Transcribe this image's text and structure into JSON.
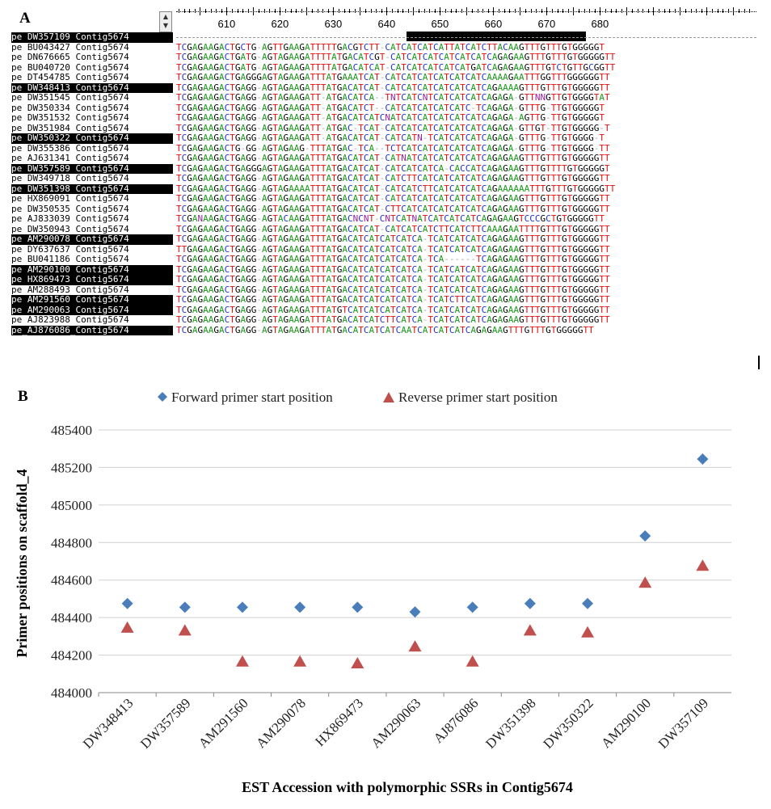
{
  "panel_a": {
    "letter": "A",
    "ruler_labels": [
      "610",
      "620",
      "630",
      "640",
      "650",
      "660",
      "670",
      "680"
    ],
    "rows": [
      {
        "name": "pe DW357109 Contig5674",
        "selected": true,
        "seq": ""
      },
      {
        "name": "pe BU043427 Contig5674",
        "selected": false,
        "seq": "TCGAGAAGACTGCTG-AGTTGAAGATTTTTGACGTCTT-CATCATCATCATTATCATCTTACAAGTTTGTTTGTGGGGGT"
      },
      {
        "name": "pe DN676665 Contig5674",
        "selected": false,
        "seq": "TCGAGAAGACTGATG-AGTAGAAGATTTTATGACATCGT-CATCATCATCATCATCATCAGAGAAGTTTGTTTGTGGGGGTT"
      },
      {
        "name": "pe BU040720 Contig5674",
        "selected": false,
        "seq": "TCGAGAAGACTGATG-AGTAGAAGATTTTATGACATCAT-CATCATCATCATCATGATCAGAGAAGTTTGTCTGTTGCGGTT"
      },
      {
        "name": "pe DT454785 Contig5674",
        "selected": false,
        "seq": "TCGAGAAGACTGAGGGAGTAGAAGATTTATGAAATCAT-CATCATCATCATCATCATCAAAAGAATTTGGTTTGGGGGGTT"
      },
      {
        "name": "pe DW348413 Contig5674",
        "selected": true,
        "seq": "TCGAGAAGACTGAGG-AGTAGAAGATTTATGACATCAT-CATCATCATCATCATCATCAGAAAAGTTTGTTTGTGGGGGTT"
      },
      {
        "name": "pe DW351545 Contig5674",
        "selected": false,
        "seq": "TCGAGAAGACTGAGG-AGTAGAAGATT-ATGACATCA--TNTCATCNTCATCATCATCAGAGA-GTTNNGTTGTGGGGTAT"
      },
      {
        "name": "pe DW350334 Contig5674",
        "selected": false,
        "seq": "TCGAGAAGACTGAGG-AGTAGAAGATT-ATGACATCT--CATCATCATCATCATC-TCAGAGA-GTTTG-TTGTGGGGGT"
      },
      {
        "name": "pe DW351532 Contig5674",
        "selected": false,
        "seq": "TCGAGAAGACTGAGG-AGTAGAAGATT-ATGACATCATCNATCATCATCATCATCATCAGAGA-AGTTG-TTGTGGGGGT"
      },
      {
        "name": "pe DW351984 Contig5674",
        "selected": false,
        "seq": "TCGAGAAGACTGAGG-AGTAGAAGATT-ATGAC-TCAT-CATCATCATCATCATCATCAGAGA-GTTGT-TTGTGGGGG-T"
      },
      {
        "name": "pe DW350322 Contig5674",
        "selected": true,
        "seq": "TCGAGAAGACTGAGG-AGTAGAAGATT-ATGACATCAT-CATCATN-TCATCATCATCAGAGA-GTTTG-TTGTGGGG-T"
      },
      {
        "name": "pe DW355386 Contig5674",
        "selected": false,
        "seq": "TCGAGAAGACTG-GG-AGTAGAAG-TTTATGAC-TCA--TCTCATCATCATCATCATCAGAGA-GTTTG-TTGTGGGG-TT"
      },
      {
        "name": "pe AJ631341 Contig5674",
        "selected": false,
        "seq": "TCGAGAAGACTGAGG-AGTAGAAGATTTATGACATCAT-CATNATCATCATCATCATCAGAGAAGTTTGTTTGTGGGGGTT"
      },
      {
        "name": "pe DW357589 Contig5674",
        "selected": true,
        "seq": "TCGAGAAGACTGAGGGAGTAGAAGATTTATGACATCAT-CATCATCATCA-CACCATCAGAGAAGTTTGTTTTGTGGGGGT"
      },
      {
        "name": "pe DW349718 Contig5674",
        "selected": false,
        "seq": "TCGAGAAGACTGAGG-AGTAGAAGATTTATGACATCAT-CATCTTCATCATCATCATCAGAGAAGTTTGTTTGTGGGGGTT"
      },
      {
        "name": "pe DW351398 Contig5674",
        "selected": true,
        "seq": "TCGAGAAGACTGAGG-AGTAGAAAATTTATGACATCAT-CATCATCTTCATCATCATCAGAAAAAATTTGTTTGTGGGGGTT"
      },
      {
        "name": "pe HX869091 Contig5674",
        "selected": false,
        "seq": "TCGAGAAGACTGAGG-AGTAGAAGATTTATGACATCAT-CATCATCATCATCATCATCAGAGAAGTTTGTTTGTGGGGGTT"
      },
      {
        "name": "pe DW350535 Contig5674",
        "selected": false,
        "seq": "TCGAGAAGACTGAGG-AGTAGAAGATTTATGACATCAT-CTTCATCATCATCATCATCAGAGAAGTTTGTTTGTGGGGGTT"
      },
      {
        "name": "pe AJ833039 Contig5674",
        "selected": false,
        "seq": "TCGANAAGACTGAGG-AGTACAAGATTTATGACNCNT-CNTCATNATCATCATCATCAGAGAAGTCCCGCTGTGGGGGTT"
      },
      {
        "name": "pe DW350943 Contig5674",
        "selected": false,
        "seq": "TCGAGAAGACTGAGG-AGTAGAAGATTTATGACATCAT-CATCATCATCTTCATCTTCAAAGAATTTTGTTTGTGGGGGTT"
      },
      {
        "name": "pe AM290078 Contig5674",
        "selected": true,
        "seq": "TCGAGAAGACTGAGG-AGTAGAAGATTTATGACATCATCATCATCA-TCATCATCATCAGAGAAGTTTGTTTGTGGGGGTT"
      },
      {
        "name": "pe DY637637 Contig5674",
        "selected": false,
        "seq": "TTGAGAAGACTGAGG-AGTAGAAGATTTATGACATCATCATCATCA-TCATCATCATCAGAGAAGTTTGTTTGTGGGGGTT"
      },
      {
        "name": "pe BU041186 Contig5674",
        "selected": false,
        "seq": "TCGAGAAGACTGAGG-AGTAGAAGATTTATGACATCATCATCATCA-TCA------TCAGAGAAGTTTGTTTGTGGGGGTT"
      },
      {
        "name": "pe AM290100 Contig5674",
        "selected": true,
        "seq": "TCGAGAAGACTGAGG-AGTAGAAGATTTATGACATCATCATCATCA-TCATCATCATCAGAGAAGTTTGTTTGTGGGGGTT"
      },
      {
        "name": "pe HX869473 Contig5674",
        "selected": true,
        "seq": "TCGAGAAGACTGAGG-AGTAGAAGATTTATGACATCATCATCATCA-TCATCATCATCAGAGAAGTTTGTTTGTGGGGGTT"
      },
      {
        "name": "pe AM288493 Contig5674",
        "selected": false,
        "seq": "TCGAGAAGACTGAGG-AGTAGAAGATTTATGACATCATCATCATCA-TCATCATCATCAGAGAAGTTTGTTTGTGGGGGTT"
      },
      {
        "name": "pe AM291560 Contig5674",
        "selected": true,
        "seq": "TCGAGAAGACTGAGG-AGTAGAAGATTTATGACATCATCATCATCA-TCATCTTCATCAGAGAAGTTTGTTTGTGGGGGTT"
      },
      {
        "name": "pe AM290063 Contig5674",
        "selected": true,
        "seq": "TCGAGAAGACTGAGG-AGTAGAAGATTTATGTCATCATCATCATCA-TCATCATCATCAGAGAAGTTTGTTTGTGGGGGTT"
      },
      {
        "name": "pe AJ823988 Contig5674",
        "selected": false,
        "seq": "TCGAGAAGACTGAGG-AGTAGAAGATTTATGACATCATCTTCATCA-TCATCATCATCAGAGAAGTTTGTTTGTGGGGGTT"
      },
      {
        "name": "pe_AJ876086_Contig5674",
        "selected": true,
        "seq": "TCGAGAAGACTGAGG-AGTAGAAGATTTATGACATCATCATCAATCATCATCATCAGAGAAGTTTGTTTGTGGGGGTT"
      }
    ],
    "colors": {
      "A": "#1b9a1b",
      "C": "#1f2fd0",
      "G": "#000000",
      "T": "#e01010",
      "N": "#9b1fa0"
    }
  },
  "chart_data": {
    "type": "scatter",
    "panel_letter": "B",
    "categories": [
      "DW348413",
      "DW357589",
      "AM291560",
      "AM290078",
      "HX869473",
      "AM290063",
      "AJ876086",
      "DW351398",
      "DW350322",
      "AM290100",
      "DW357109"
    ],
    "series": [
      {
        "name": "Forward primer start position",
        "marker": "diamond",
        "color": "#4a7ebb",
        "values": [
          484475,
          484455,
          484455,
          484455,
          484455,
          484430,
          484455,
          484475,
          484475,
          484835,
          485245
        ]
      },
      {
        "name": "Reverse primer start position",
        "marker": "triangle",
        "color": "#c0504d",
        "values": [
          484345,
          484330,
          484165,
          484165,
          484155,
          484245,
          484165,
          484330,
          484320,
          484585,
          484675
        ]
      }
    ],
    "xlabel": "EST Accession with polymorphic  SSRs in Contig5674",
    "ylabel": "Primer positions on scaffold_4",
    "ylim": [
      484000,
      485400
    ],
    "yticks": [
      484000,
      484200,
      484400,
      484600,
      484800,
      485000,
      485200,
      485400
    ],
    "grid": "horizontal",
    "legend": "top"
  }
}
